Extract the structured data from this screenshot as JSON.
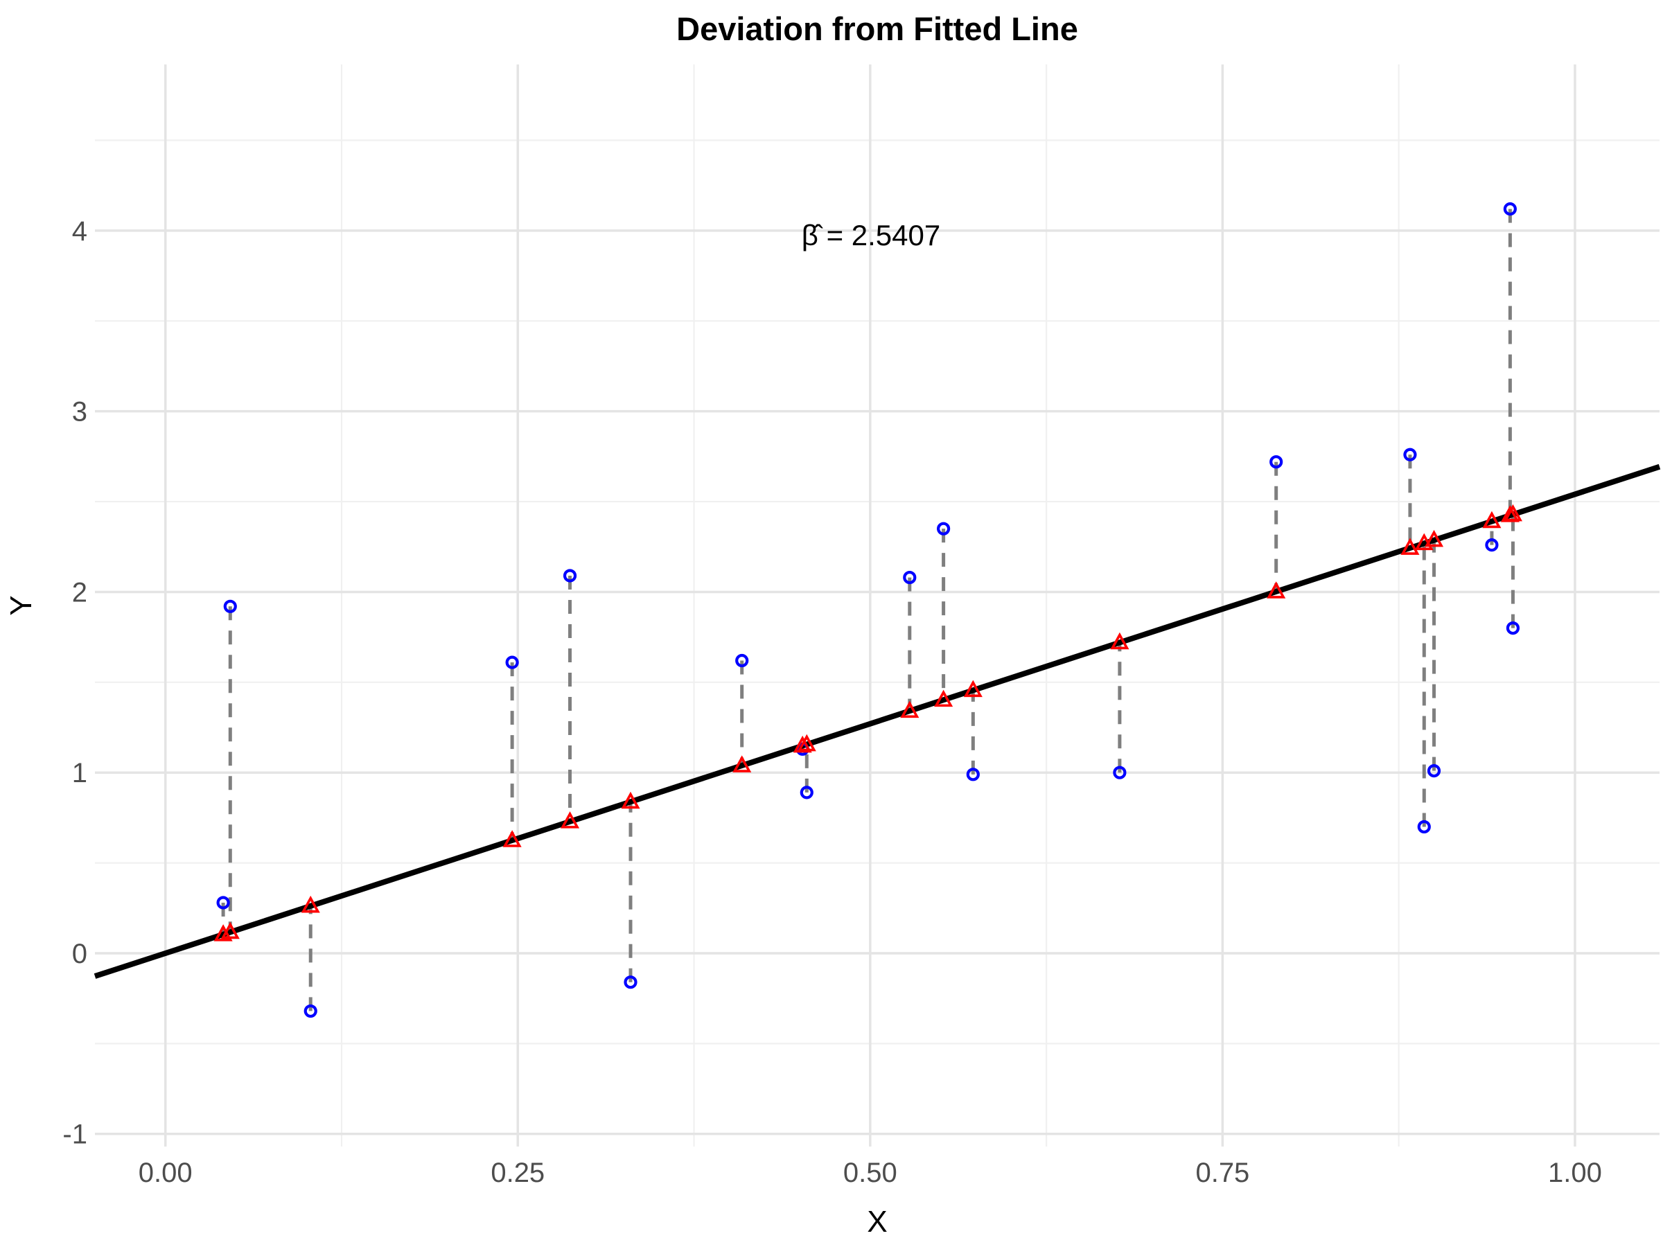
{
  "chart_data": {
    "type": "scatter",
    "title": "Deviation from Fitted Line",
    "annotation": "β̂ = 2.5407",
    "beta_hat": 2.5407,
    "xlabel": "X",
    "ylabel": "Y",
    "xlim": [
      -0.05,
      1.06
    ],
    "ylim": [
      -1.07,
      4.92
    ],
    "grid": "major and minor, light gray on white, no axis lines",
    "x_ticks": [
      0,
      0.25,
      0.5,
      0.75,
      1
    ],
    "x_tick_labels": [
      "0.00",
      "0.25",
      "0.50",
      "0.75",
      "1.00"
    ],
    "x_minor_ticks": [
      0.125,
      0.375,
      0.625,
      0.875
    ],
    "y_ticks": [
      -1,
      0,
      1,
      2,
      3,
      4
    ],
    "y_tick_labels": [
      "-1",
      "0",
      "1",
      "2",
      "3",
      "4"
    ],
    "y_minor_ticks": [
      -0.5,
      0.5,
      1.5,
      2.5,
      3.5,
      4.5
    ],
    "fitted_line": {
      "slope": 2.5407,
      "intercept": 0,
      "color": "#000000"
    },
    "points": [
      {
        "x": 0.041,
        "observed": 0.28,
        "fitted": 0.104
      },
      {
        "x": 0.046,
        "observed": 1.92,
        "fitted": 0.117
      },
      {
        "x": 0.103,
        "observed": -0.32,
        "fitted": 0.262
      },
      {
        "x": 0.246,
        "observed": 1.61,
        "fitted": 0.625
      },
      {
        "x": 0.287,
        "observed": 2.09,
        "fitted": 0.729
      },
      {
        "x": 0.33,
        "observed": -0.16,
        "fitted": 0.838
      },
      {
        "x": 0.409,
        "observed": 1.62,
        "fitted": 1.039
      },
      {
        "x": 0.452,
        "observed": 1.13,
        "fitted": 1.148
      },
      {
        "x": 0.455,
        "observed": 0.89,
        "fitted": 1.156
      },
      {
        "x": 0.528,
        "observed": 2.08,
        "fitted": 1.341
      },
      {
        "x": 0.552,
        "observed": 2.35,
        "fitted": 1.402
      },
      {
        "x": 0.573,
        "observed": 0.99,
        "fitted": 1.456
      },
      {
        "x": 0.677,
        "observed": 1.0,
        "fitted": 1.72
      },
      {
        "x": 0.788,
        "observed": 2.72,
        "fitted": 2.002
      },
      {
        "x": 0.883,
        "observed": 2.76,
        "fitted": 2.243
      },
      {
        "x": 0.893,
        "observed": 0.7,
        "fitted": 2.269
      },
      {
        "x": 0.9,
        "observed": 1.01,
        "fitted": 2.287
      },
      {
        "x": 0.941,
        "observed": 2.26,
        "fitted": 2.391
      },
      {
        "x": 0.954,
        "observed": 4.12,
        "fitted": 2.424
      },
      {
        "x": 0.956,
        "observed": 1.8,
        "fitted": 2.429
      }
    ],
    "series": [
      {
        "name": "observed",
        "marker": "open-circle",
        "color": "#0000ff"
      },
      {
        "name": "fitted",
        "marker": "open-triangle",
        "color": "#ff0000"
      }
    ],
    "residual_style": {
      "color": "#7f7f7f",
      "dash": "dashed"
    },
    "colors": {
      "background": "#ffffff",
      "grid_major": "#e4e4e4",
      "grid_minor": "#f0f0f0",
      "tick_text": "#4d4d4d",
      "title_text": "#000000"
    }
  }
}
